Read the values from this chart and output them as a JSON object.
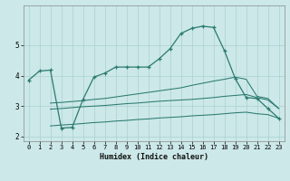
{
  "xlabel": "Humidex (Indice chaleur)",
  "background_color": "#cce8e8",
  "grid_color": "#aad0d0",
  "line_color": "#2a7a70",
  "xlim": [
    -0.5,
    23.5
  ],
  "ylim": [
    1.85,
    6.3
  ],
  "x_ticks": [
    0,
    1,
    2,
    3,
    4,
    5,
    6,
    7,
    8,
    9,
    10,
    11,
    12,
    13,
    14,
    15,
    16,
    17,
    18,
    19,
    20,
    21,
    22,
    23
  ],
  "y_ticks": [
    2,
    3,
    4,
    5
  ],
  "line1_x": [
    0,
    1,
    2,
    3,
    4,
    5,
    6,
    7,
    8,
    9,
    10,
    11,
    12,
    13,
    14,
    15,
    16,
    17,
    18,
    19,
    20,
    21,
    22,
    23
  ],
  "line1_y": [
    3.85,
    4.15,
    4.18,
    2.28,
    2.3,
    3.22,
    3.95,
    4.08,
    4.28,
    4.28,
    4.28,
    4.28,
    4.55,
    4.88,
    5.38,
    5.55,
    5.62,
    5.58,
    4.82,
    3.9,
    3.28,
    3.25,
    2.92,
    2.6
  ],
  "line2_x": [
    2,
    3,
    4,
    5,
    6,
    7,
    8,
    9,
    10,
    11,
    12,
    13,
    14,
    15,
    16,
    17,
    18,
    19,
    20,
    21,
    22,
    23
  ],
  "line2_y": [
    3.1,
    3.12,
    3.15,
    3.18,
    3.22,
    3.25,
    3.3,
    3.35,
    3.4,
    3.45,
    3.5,
    3.55,
    3.6,
    3.68,
    3.75,
    3.82,
    3.88,
    3.95,
    3.88,
    3.32,
    3.25,
    2.92
  ],
  "line3_x": [
    2,
    3,
    4,
    5,
    6,
    7,
    8,
    9,
    10,
    11,
    12,
    13,
    14,
    15,
    16,
    17,
    18,
    19,
    20,
    21,
    22,
    23
  ],
  "line3_y": [
    2.9,
    2.92,
    2.95,
    2.98,
    3.0,
    3.02,
    3.05,
    3.08,
    3.1,
    3.13,
    3.16,
    3.18,
    3.2,
    3.22,
    3.25,
    3.28,
    3.32,
    3.35,
    3.38,
    3.28,
    3.2,
    2.92
  ],
  "line4_x": [
    2,
    3,
    4,
    5,
    6,
    7,
    8,
    9,
    10,
    11,
    12,
    13,
    14,
    15,
    16,
    17,
    18,
    19,
    20,
    21,
    22,
    23
  ],
  "line4_y": [
    2.35,
    2.38,
    2.4,
    2.43,
    2.46,
    2.48,
    2.51,
    2.53,
    2.56,
    2.58,
    2.61,
    2.63,
    2.65,
    2.68,
    2.7,
    2.72,
    2.75,
    2.78,
    2.8,
    2.75,
    2.72,
    2.6
  ]
}
